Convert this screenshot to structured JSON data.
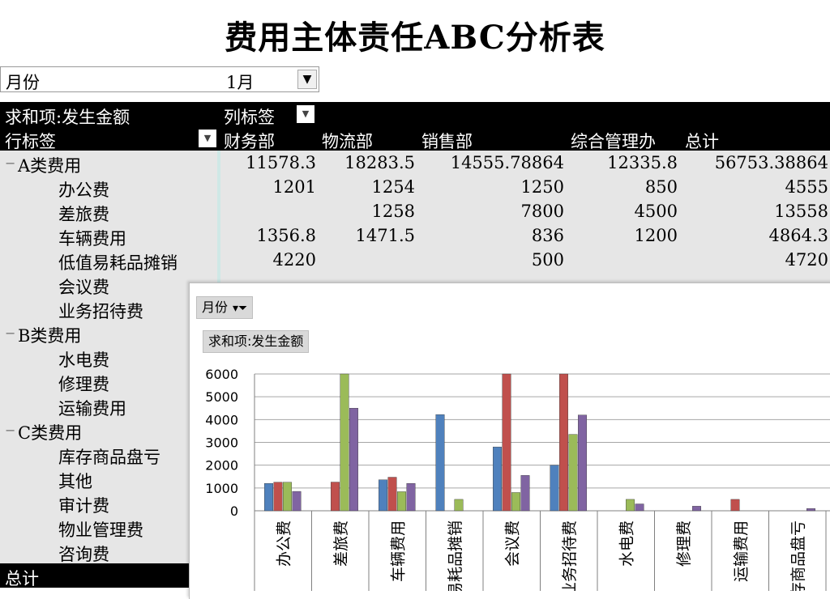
{
  "title": "费用主体责任ABC分析表",
  "filter": {
    "label": "月份",
    "value": "1月"
  },
  "pivot": {
    "sum_label": "求和项:发生金额",
    "col_label": "列标签",
    "row_label": "行标签",
    "columns": [
      "财务部",
      "物流部",
      "销售部",
      "综合管理办",
      "总计"
    ],
    "rows": [
      {
        "label": "A类费用",
        "kind": "group",
        "values": [
          "11578.3",
          "18283.5",
          "14555.78864",
          "12335.8",
          "56753.38864"
        ]
      },
      {
        "label": "办公费",
        "kind": "item",
        "values": [
          "1201",
          "1254",
          "1250",
          "850",
          "4555"
        ]
      },
      {
        "label": "差旅费",
        "kind": "item",
        "values": [
          "",
          "1258",
          "7800",
          "4500",
          "13558"
        ]
      },
      {
        "label": "车辆费用",
        "kind": "item",
        "values": [
          "1356.8",
          "1471.5",
          "836",
          "1200",
          "4864.3"
        ]
      },
      {
        "label": "低值易耗品摊销",
        "kind": "item",
        "values": [
          "4220",
          "",
          "500",
          "",
          "4720"
        ]
      },
      {
        "label": "会议费",
        "kind": "item",
        "values": [
          "",
          "",
          "",
          "",
          ""
        ]
      },
      {
        "label": "业务招待费",
        "kind": "item",
        "values": [
          "",
          "",
          "",
          "",
          ""
        ]
      },
      {
        "label": "B类费用",
        "kind": "group",
        "values": [
          "",
          "",
          "",
          "",
          ""
        ]
      },
      {
        "label": "水电费",
        "kind": "item",
        "values": [
          "",
          "",
          "",
          "",
          ""
        ]
      },
      {
        "label": "修理费",
        "kind": "item",
        "values": [
          "",
          "",
          "",
          "",
          ""
        ]
      },
      {
        "label": "运输费用",
        "kind": "item",
        "values": [
          "",
          "",
          "",
          "",
          ""
        ]
      },
      {
        "label": "C类费用",
        "kind": "group",
        "values": [
          "",
          "",
          "",
          "",
          ""
        ]
      },
      {
        "label": "库存商品盘亏",
        "kind": "item",
        "values": [
          "",
          "",
          "",
          "",
          ""
        ]
      },
      {
        "label": "其他",
        "kind": "item",
        "values": [
          "",
          "",
          "",
          "",
          ""
        ]
      },
      {
        "label": "审计费",
        "kind": "item",
        "values": [
          "",
          "",
          "",
          "",
          ""
        ]
      },
      {
        "label": "物业管理费",
        "kind": "item",
        "values": [
          "",
          "",
          "",
          "",
          ""
        ]
      },
      {
        "label": "咨询费",
        "kind": "item",
        "values": [
          "",
          "",
          "",
          "",
          ""
        ]
      }
    ],
    "total_label": "总计"
  },
  "chart_panel": {
    "filter_label": "月份",
    "sum_label": "求和项:发生金额"
  },
  "chart_data": {
    "type": "bar",
    "categories": [
      "办公费",
      "差旅费",
      "车辆费用",
      "低值易耗品摊销",
      "会议费",
      "业务招待费",
      "水电费",
      "修理费",
      "运输费用",
      "库存商品盘亏"
    ],
    "ylim": [
      0,
      6000
    ],
    "yticks": [
      0,
      1000,
      2000,
      3000,
      4000,
      5000,
      6000
    ],
    "series": [
      {
        "color": "#4f81bd",
        "values": [
          1201,
          0,
          1357,
          4220,
          2800,
          2000,
          0,
          0,
          0,
          0
        ]
      },
      {
        "color": "#c0504d",
        "values": [
          1254,
          1258,
          1472,
          0,
          6000,
          6000,
          0,
          0,
          500,
          0
        ]
      },
      {
        "color": "#9bbb59",
        "values": [
          1250,
          6000,
          836,
          500,
          800,
          3350,
          500,
          0,
          0,
          0
        ]
      },
      {
        "color": "#8064a2",
        "values": [
          850,
          4500,
          1200,
          0,
          1550,
          4200,
          300,
          200,
          0,
          100
        ]
      }
    ],
    "xlabel_prefix": [
      "",
      "",
      "",
      "",
      "",
      "",
      "",
      "",
      "",
      ""
    ]
  }
}
